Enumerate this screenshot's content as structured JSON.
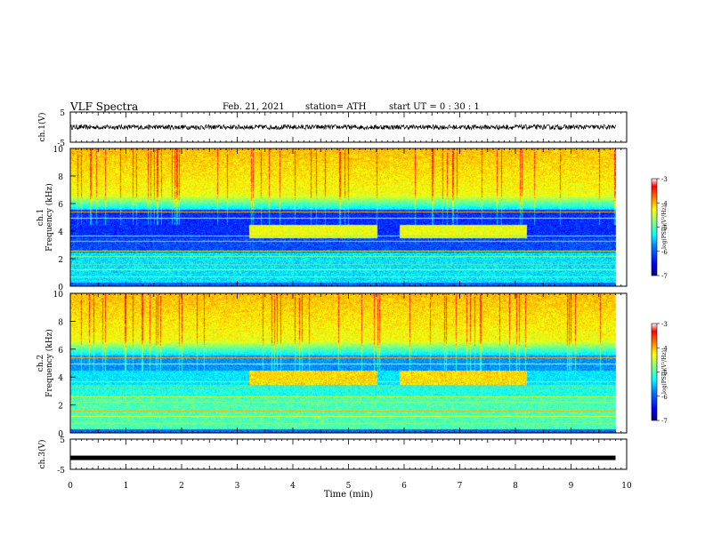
{
  "header": {
    "title": "VLF Spectra",
    "date": "Feb. 21, 2021",
    "station": "station= ATH",
    "start": "start  UT =  0 : 30 : 1"
  },
  "chart_data": [
    {
      "type": "line",
      "panel": "ch1-waveform",
      "ylabel": "ch.1(V)",
      "ylim": [
        -5,
        5
      ],
      "yticks": [
        "5",
        "-5"
      ],
      "description_series": "voltage trace near 0 V",
      "xlim": [
        0,
        10
      ]
    },
    {
      "type": "heatmap",
      "panel": "ch1-spectrogram",
      "ylabel": "ch.1\nFrequency (kHz)",
      "ylim": [
        0,
        10
      ],
      "yticks": [
        "0",
        "2",
        "4",
        "6",
        "8",
        "10"
      ],
      "xlim": [
        0,
        10
      ],
      "data_end_min": 9.8,
      "colorbar": {
        "label": "log(PSD)(V²/Hz)",
        "range": [
          -7,
          -3
        ],
        "ticks": [
          "-3",
          "-4",
          "-5",
          "-6",
          "-7"
        ]
      },
      "events": [
        {
          "t_start": 3.2,
          "t_end": 5.5,
          "freq_khz": [
            3.6,
            4.4
          ]
        },
        {
          "t_start": 5.9,
          "t_end": 8.2,
          "freq_khz": [
            3.6,
            4.4
          ]
        }
      ]
    },
    {
      "type": "heatmap",
      "panel": "ch2-spectrogram",
      "ylabel": "ch.2\nFrequency (kHz)",
      "ylim": [
        0,
        10
      ],
      "yticks": [
        "0",
        "2",
        "4",
        "6",
        "8",
        "10"
      ],
      "xlim": [
        0,
        10
      ],
      "data_end_min": 9.8,
      "colorbar": {
        "label": "log(PSD)(V²/Hz)",
        "range": [
          -7,
          -3
        ],
        "ticks": [
          "-3",
          "-4",
          "-5",
          "-6",
          "-7"
        ]
      },
      "events": [
        {
          "t_start": 3.2,
          "t_end": 5.5,
          "freq_khz": [
            3.6,
            4.4
          ]
        },
        {
          "t_start": 5.9,
          "t_end": 8.2,
          "freq_khz": [
            3.6,
            4.4
          ]
        }
      ]
    },
    {
      "type": "line",
      "panel": "ch3-waveform",
      "ylabel": "ch.3(V)",
      "ylim": [
        -5,
        5
      ],
      "yticks": [
        "5",
        "-5"
      ],
      "flat_value": -1.2,
      "xlim": [
        0,
        10
      ]
    }
  ],
  "xaxis": {
    "label": "Time (min)",
    "ticks": [
      "0",
      "1",
      "2",
      "3",
      "4",
      "5",
      "6",
      "7",
      "8",
      "9",
      "10"
    ]
  },
  "colors": {
    "colormap": [
      "#00007f",
      "#0000ff",
      "#007fff",
      "#00ffff",
      "#7fff7f",
      "#ffff00",
      "#ff7f00",
      "#ff0000",
      "#ffffff"
    ]
  }
}
